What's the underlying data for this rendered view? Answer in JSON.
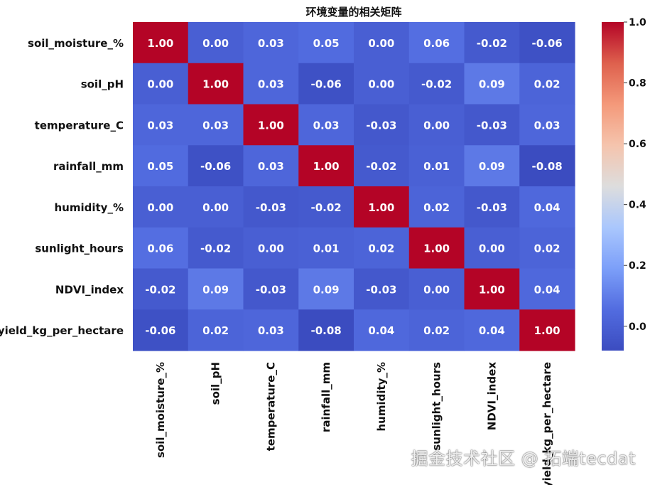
{
  "chart_data": {
    "type": "heatmap",
    "title": "环境变量的相关矩阵",
    "row_labels": [
      "soil_moisture_%",
      "soil_pH",
      "temperature_C",
      "rainfall_mm",
      "humidity_%",
      "sunlight_hours",
      "NDVI_index",
      "yield_kg_per_hectare"
    ],
    "col_labels": [
      "soil_moisture_%",
      "soil_pH",
      "temperature_C",
      "rainfall_mm",
      "humidity_%",
      "sunlight_hours",
      "NDVI_index",
      "yield_kg_per_hectare"
    ],
    "values": [
      [
        1.0,
        0.0,
        0.03,
        0.05,
        0.0,
        0.06,
        -0.02,
        -0.06
      ],
      [
        0.0,
        1.0,
        0.03,
        -0.06,
        0.0,
        -0.02,
        0.09,
        0.02
      ],
      [
        0.03,
        0.03,
        1.0,
        0.03,
        -0.03,
        0.0,
        -0.03,
        0.03
      ],
      [
        0.05,
        -0.06,
        0.03,
        1.0,
        -0.02,
        0.01,
        0.09,
        -0.08
      ],
      [
        0.0,
        0.0,
        -0.03,
        -0.02,
        1.0,
        0.02,
        -0.03,
        0.04
      ],
      [
        0.06,
        -0.02,
        0.0,
        0.01,
        0.02,
        1.0,
        0.0,
        0.02
      ],
      [
        -0.02,
        0.09,
        -0.03,
        0.09,
        -0.03,
        0.0,
        1.0,
        0.04
      ],
      [
        -0.06,
        0.02,
        0.03,
        -0.08,
        0.04,
        0.02,
        0.04,
        1.0
      ]
    ],
    "colormap": "coolwarm",
    "vmin": -0.08,
    "vmax": 1.0,
    "colorbar_ticks": [
      0.0,
      0.2,
      0.4,
      0.6,
      0.8,
      1.0
    ],
    "annotations": true,
    "value_format": "2 decimals"
  },
  "watermark": "掘金技术社区 @ 拓端tecdat"
}
